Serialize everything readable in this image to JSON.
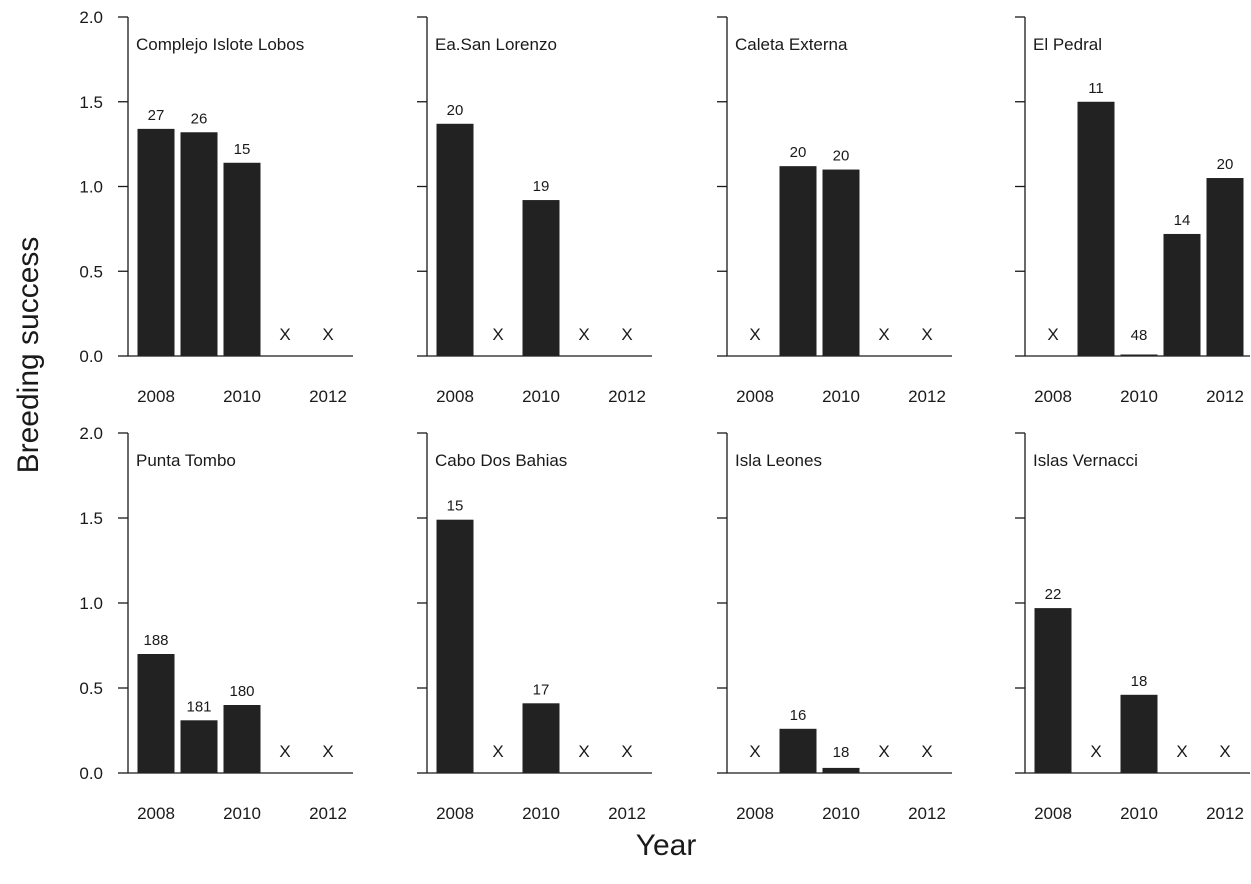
{
  "chart_data": {
    "type": "bar",
    "xlabel": "Year",
    "ylabel": "Breeding success",
    "ylim": [
      0,
      2.0
    ],
    "y_ticks": [
      "0.0",
      "0.5",
      "1.0",
      "1.5",
      "2.0"
    ],
    "x_ticks": [
      "2008",
      "2010",
      "2012"
    ],
    "missing_marker": "X",
    "categories": [
      "2008",
      "2009",
      "2010",
      "2011",
      "2012"
    ],
    "panels": [
      {
        "title": "Complejo Islote Lobos",
        "values": [
          1.34,
          1.32,
          1.14,
          null,
          null
        ],
        "labels": [
          "27",
          "26",
          "15",
          "",
          ""
        ]
      },
      {
        "title": "Ea.San Lorenzo",
        "values": [
          1.37,
          null,
          0.92,
          null,
          null
        ],
        "labels": [
          "20",
          "",
          "19",
          "",
          ""
        ]
      },
      {
        "title": "Caleta Externa",
        "values": [
          null,
          1.12,
          1.1,
          null,
          null
        ],
        "labels": [
          "",
          "20",
          "20",
          "",
          ""
        ]
      },
      {
        "title": "El Pedral",
        "values": [
          null,
          1.5,
          0.0,
          0.72,
          1.05
        ],
        "labels": [
          "",
          "11",
          "48",
          "14",
          "20"
        ]
      },
      {
        "title": "Punta Tombo",
        "values": [
          0.7,
          0.31,
          0.4,
          null,
          null
        ],
        "labels": [
          "188",
          "181",
          "180",
          "",
          ""
        ]
      },
      {
        "title": "Cabo Dos Bahias",
        "values": [
          1.49,
          null,
          0.41,
          null,
          null
        ],
        "labels": [
          "15",
          "",
          "17",
          "",
          ""
        ]
      },
      {
        "title": "Isla Leones",
        "values": [
          null,
          0.26,
          0.03,
          null,
          null
        ],
        "labels": [
          "",
          "16",
          "18",
          "",
          ""
        ]
      },
      {
        "title": "Islas Vernacci",
        "values": [
          0.97,
          null,
          0.46,
          null,
          null
        ],
        "labels": [
          "22",
          "",
          "18",
          "",
          ""
        ]
      }
    ]
  }
}
